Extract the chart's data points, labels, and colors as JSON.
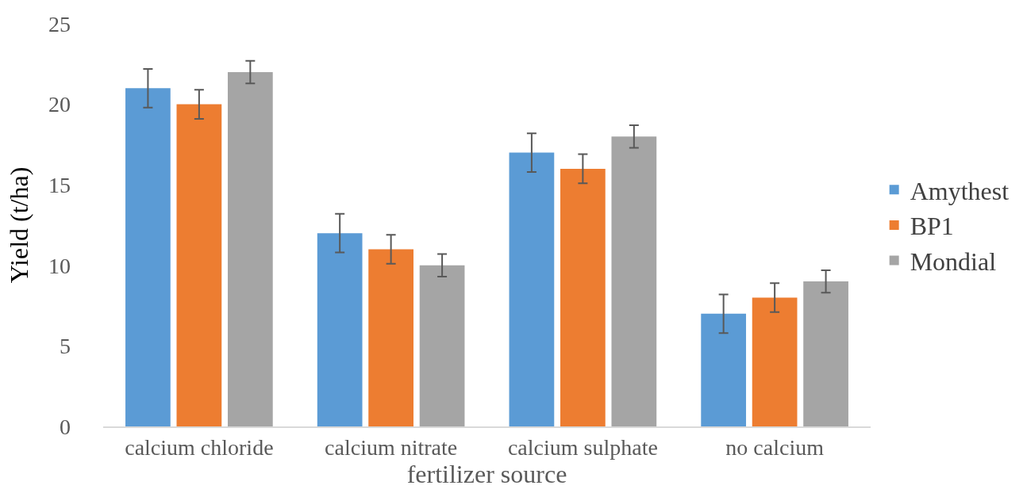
{
  "chart_data": {
    "type": "bar",
    "xlabel": "fertilizer source",
    "ylabel": "Yield (t/ha)",
    "categories": [
      "calcium chloride",
      "calcium nitrate",
      "calcium sulphate",
      "no calcium"
    ],
    "series": [
      {
        "name": "Amythest",
        "color": "#5b9bd5",
        "values": [
          21.0,
          12.0,
          17.0,
          7.0
        ],
        "errors": [
          1.2,
          1.2,
          1.2,
          1.2
        ]
      },
      {
        "name": "BP1",
        "color": "#ed7d31",
        "values": [
          20.0,
          11.0,
          16.0,
          8.0
        ],
        "errors": [
          0.9,
          0.9,
          0.9,
          0.9
        ]
      },
      {
        "name": "Mondial",
        "color": "#a5a5a5",
        "values": [
          22.0,
          10.0,
          18.0,
          9.0
        ],
        "errors": [
          0.7,
          0.7,
          0.7,
          0.7
        ]
      }
    ],
    "ylim": [
      0,
      25
    ],
    "yticks": [
      0,
      5,
      10,
      15,
      20,
      25
    ],
    "grid": false,
    "legend": "right"
  }
}
